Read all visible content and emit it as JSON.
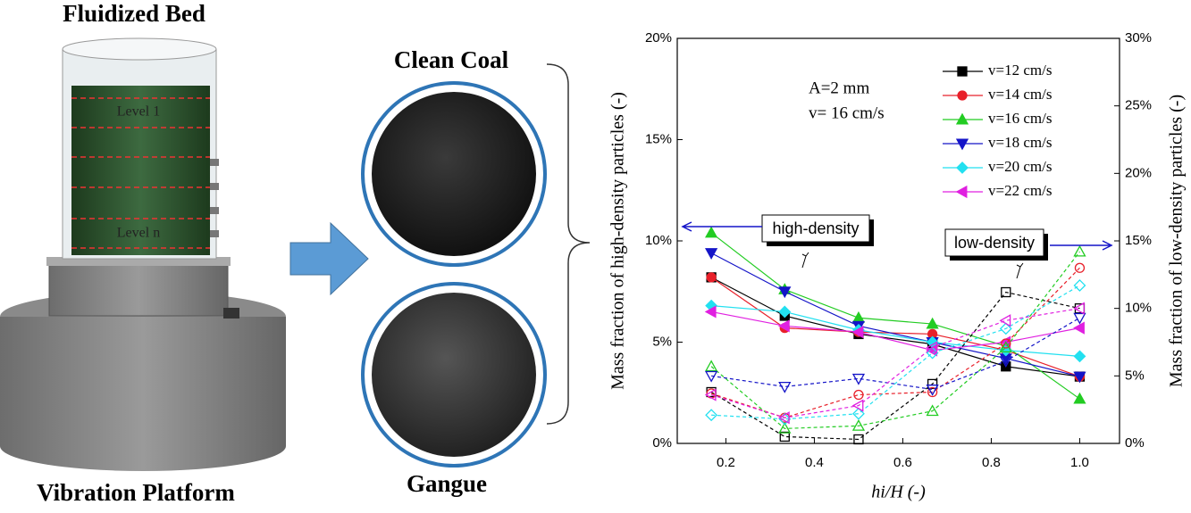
{
  "illustration": {
    "bed_title": "Fluidized Bed",
    "level_top": "Level 1",
    "level_bottom": "Level n",
    "platform_title": "Vibration Platform",
    "clean_label": "Clean Coal",
    "gangue_label": "Gangue"
  },
  "chart_data": {
    "type": "line",
    "x": [
      0.167,
      0.333,
      0.5,
      0.667,
      0.833,
      1.0
    ],
    "xlim": [
      0.09,
      1.09
    ],
    "xticks": [
      0.2,
      0.4,
      0.6,
      0.8,
      1.0
    ],
    "ylim": [
      0,
      20
    ],
    "yticks": [
      {
        "value": 0,
        "label": "0%"
      },
      {
        "value": 5,
        "label": "5%"
      },
      {
        "value": 10,
        "label": "10%"
      },
      {
        "value": 15,
        "label": "15%"
      },
      {
        "value": 20,
        "label": "20%"
      }
    ],
    "y2lim": [
      0,
      30
    ],
    "y2ticks": [
      {
        "value": 0,
        "label": "0%"
      },
      {
        "value": 5,
        "label": "5%"
      },
      {
        "value": 10,
        "label": "10%"
      },
      {
        "value": 15,
        "label": "15%"
      },
      {
        "value": 20,
        "label": "20%"
      },
      {
        "value": 25,
        "label": "25%"
      },
      {
        "value": 30,
        "label": "30%"
      }
    ],
    "xlabel": "hi/H (-)",
    "ylabel": "Mass fraction of high-density particles (-)",
    "y2label": "Mass fraction of low-density particles (-)",
    "annotations": [
      "A=2 mm",
      "v= 16 cm/s",
      "high-density",
      "low-density"
    ],
    "legend": "upper right",
    "series": [
      {
        "name": "v=12 cm/s",
        "color": "#000000",
        "marker": "square",
        "values": [
          8.2,
          6.3,
          5.4,
          4.9,
          3.8,
          3.3
        ]
      },
      {
        "name": "v=14 cm/s",
        "color": "#e8202a",
        "marker": "circle",
        "values": [
          8.2,
          5.7,
          5.5,
          5.4,
          4.6,
          3.3
        ]
      },
      {
        "name": "v=16 cm/s",
        "color": "#22cc22",
        "marker": "triangle-up",
        "values": [
          10.4,
          7.6,
          6.2,
          5.9,
          4.8,
          2.2
        ]
      },
      {
        "name": "v=18 cm/s",
        "color": "#1414c8",
        "marker": "triangle-down",
        "values": [
          9.4,
          7.5,
          5.8,
          5.0,
          4.2,
          3.3
        ]
      },
      {
        "name": "v=20 cm/s",
        "color": "#22e0f0",
        "marker": "diamond",
        "values": [
          6.8,
          6.5,
          5.6,
          5.0,
          4.6,
          4.3
        ]
      },
      {
        "name": "v=22 cm/s",
        "color": "#e020e0",
        "marker": "triangle-left",
        "values": [
          6.5,
          5.8,
          5.5,
          4.6,
          5.0,
          5.7
        ]
      },
      {
        "color": "#000000",
        "marker": "square",
        "axis": "y2",
        "dashed": true,
        "values": [
          3.8,
          0.5,
          0.3,
          4.4,
          11.2,
          10.0
        ]
      },
      {
        "color": "#e8202a",
        "marker": "circle",
        "axis": "y2",
        "dashed": true,
        "values": [
          3.7,
          1.9,
          3.6,
          3.8,
          7.4,
          13.0
        ]
      },
      {
        "color": "#22cc22",
        "marker": "triangle-up",
        "axis": "y2",
        "dashed": true,
        "values": [
          5.7,
          1.1,
          1.3,
          2.4,
          7.1,
          14.2
        ]
      },
      {
        "color": "#1414c8",
        "marker": "triangle-down",
        "axis": "y2",
        "dashed": true,
        "values": [
          5.0,
          4.2,
          4.8,
          4.0,
          6.1,
          9.3
        ]
      },
      {
        "color": "#22e0f0",
        "marker": "diamond",
        "axis": "y2",
        "dashed": true,
        "values": [
          2.1,
          1.8,
          2.2,
          6.7,
          8.5,
          11.7
        ]
      },
      {
        "color": "#e020e0",
        "marker": "triangle-left",
        "axis": "y2",
        "dashed": true,
        "values": [
          3.6,
          1.9,
          2.8,
          7.1,
          9.1,
          10.0
        ]
      }
    ]
  }
}
